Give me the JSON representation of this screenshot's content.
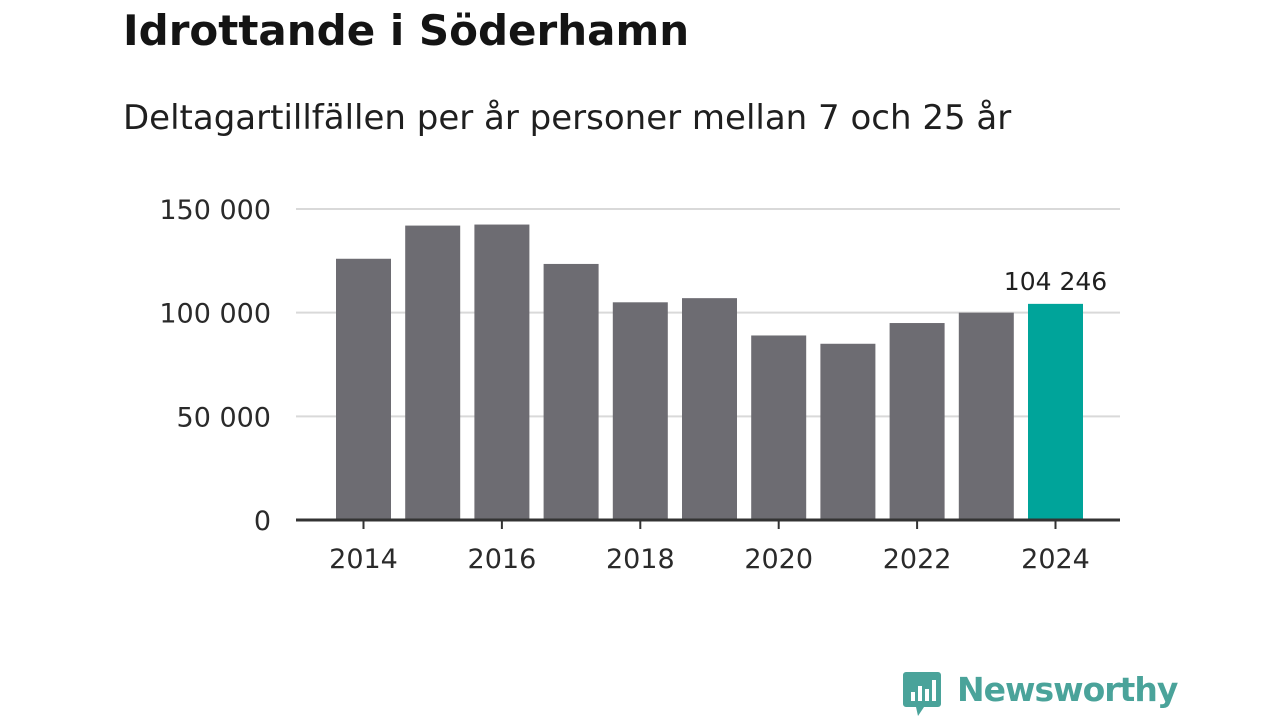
{
  "title": "Idrottande i Söderhamn",
  "subtitle": "Deltagartillfällen per år personer mellan 7 och 25 år",
  "brand": {
    "name": "Newsworthy",
    "color": "#4aa39a"
  },
  "colors": {
    "bar": "#6d6c72",
    "highlight": "#00a49a",
    "grid": "#d9d9d9",
    "axis": "#333333"
  },
  "chart_data": {
    "type": "bar",
    "categories": [
      "2014",
      "2015",
      "2016",
      "2017",
      "2018",
      "2019",
      "2020",
      "2021",
      "2022",
      "2023",
      "2024"
    ],
    "values": [
      126000,
      142000,
      142500,
      123500,
      105000,
      107000,
      89000,
      85000,
      95000,
      100000,
      104246
    ],
    "highlight_index": 10,
    "data_labels": [
      {
        "index": 10,
        "text": "104 246"
      }
    ],
    "ylim": [
      0,
      150000
    ],
    "yticks": [
      0,
      50000,
      100000,
      150000
    ],
    "ytick_labels": [
      "0",
      "50 000",
      "100 000",
      "150 000"
    ],
    "xtick_labels": [
      "2014",
      "2016",
      "2018",
      "2020",
      "2022",
      "2024"
    ],
    "xtick_indices": [
      0,
      2,
      4,
      6,
      8,
      10
    ],
    "grid": true,
    "xlabel": "",
    "ylabel": ""
  }
}
